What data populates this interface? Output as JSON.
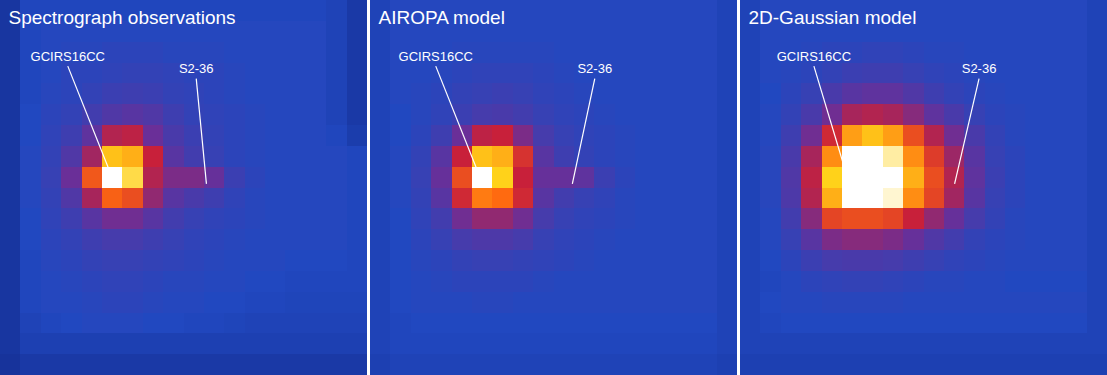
{
  "chart_data": [
    {
      "type": "heatmap",
      "title": "Spectrograph observations",
      "tick_labels": false,
      "xlim": [
        0,
        18
      ],
      "ylim": [
        0,
        18
      ],
      "zlim": [
        0,
        100
      ],
      "cells": [
        [
          14,
          24,
          24,
          24,
          24,
          24,
          24,
          24,
          24,
          24,
          24,
          24,
          24,
          24,
          24,
          24,
          22,
          16
        ],
        [
          14,
          24,
          26,
          26,
          26,
          26,
          26,
          26,
          26,
          26,
          26,
          26,
          26,
          26,
          26,
          26,
          22,
          16
        ],
        [
          14,
          24,
          26,
          27,
          27,
          28,
          28,
          28,
          27,
          27,
          27,
          26,
          26,
          26,
          26,
          26,
          22,
          16
        ],
        [
          14,
          24,
          26,
          28,
          28,
          29,
          30,
          30,
          29,
          28,
          28,
          27,
          26,
          26,
          26,
          26,
          22,
          16
        ],
        [
          14,
          24,
          27,
          28,
          30,
          32,
          33,
          32,
          30,
          29,
          28,
          27,
          26,
          26,
          26,
          26,
          22,
          16
        ],
        [
          14,
          25,
          28,
          30,
          34,
          38,
          40,
          38,
          33,
          30,
          29,
          28,
          27,
          26,
          26,
          26,
          22,
          16
        ],
        [
          14,
          25,
          29,
          33,
          42,
          58,
          60,
          45,
          36,
          32,
          30,
          28,
          27,
          26,
          26,
          26,
          24,
          18
        ],
        [
          14,
          26,
          30,
          38,
          55,
          88,
          86,
          62,
          40,
          34,
          31,
          28,
          27,
          26,
          26,
          26,
          26,
          24
        ],
        [
          14,
          26,
          31,
          45,
          74,
          100,
          92,
          58,
          48,
          48,
          44,
          32,
          28,
          26,
          26,
          26,
          26,
          24
        ],
        [
          14,
          26,
          30,
          38,
          56,
          76,
          72,
          52,
          40,
          36,
          33,
          29,
          27,
          26,
          26,
          26,
          26,
          24
        ],
        [
          14,
          25,
          29,
          33,
          40,
          46,
          46,
          40,
          34,
          31,
          29,
          28,
          27,
          26,
          26,
          26,
          26,
          24
        ],
        [
          14,
          25,
          28,
          30,
          33,
          35,
          35,
          33,
          31,
          29,
          28,
          27,
          26,
          26,
          26,
          26,
          26,
          24
        ],
        [
          14,
          24,
          27,
          28,
          30,
          31,
          31,
          30,
          29,
          28,
          27,
          26,
          26,
          26,
          25,
          25,
          25,
          24
        ],
        [
          14,
          24,
          26,
          27,
          28,
          29,
          29,
          28,
          27,
          27,
          26,
          26,
          25,
          25,
          24,
          24,
          24,
          24
        ],
        [
          14,
          24,
          26,
          26,
          27,
          28,
          28,
          27,
          26,
          26,
          25,
          25,
          24,
          24,
          23,
          23,
          23,
          23
        ],
        [
          14,
          22,
          24,
          25,
          26,
          26,
          26,
          25,
          25,
          24,
          24,
          23,
          22,
          22,
          22,
          22,
          22,
          22
        ],
        [
          14,
          20,
          20,
          20,
          20,
          20,
          20,
          20,
          20,
          20,
          20,
          20,
          20,
          20,
          20,
          20,
          20,
          20
        ],
        [
          12,
          16,
          16,
          16,
          16,
          16,
          16,
          16,
          16,
          16,
          16,
          16,
          16,
          16,
          16,
          16,
          16,
          16
        ]
      ],
      "annotations": [
        {
          "text": "GCIRS16CC",
          "x": 3.3,
          "y": 2.7,
          "point": [
            5.6,
            8.8
          ]
        },
        {
          "text": "S2-36",
          "x": 9.6,
          "y": 3.3,
          "point": [
            10.1,
            8.8
          ]
        }
      ]
    },
    {
      "type": "heatmap",
      "title": "AIROPA model",
      "tick_labels": false,
      "xlim": [
        0,
        18
      ],
      "ylim": [
        0,
        18
      ],
      "zlim": [
        0,
        100
      ],
      "cells": [
        [
          22,
          26,
          26,
          26,
          26,
          26,
          26,
          26,
          26,
          26,
          26,
          26,
          26,
          26,
          26,
          26,
          26,
          22
        ],
        [
          22,
          26,
          26,
          26,
          26,
          26,
          26,
          26,
          26,
          26,
          26,
          26,
          26,
          26,
          26,
          26,
          26,
          22
        ],
        [
          22,
          26,
          26,
          26,
          27,
          27,
          27,
          27,
          27,
          26,
          26,
          26,
          26,
          26,
          26,
          26,
          26,
          22
        ],
        [
          22,
          26,
          26,
          27,
          28,
          29,
          29,
          29,
          28,
          27,
          26,
          26,
          26,
          26,
          26,
          26,
          26,
          22
        ],
        [
          22,
          26,
          27,
          28,
          30,
          31,
          32,
          31,
          29,
          28,
          27,
          26,
          26,
          26,
          26,
          26,
          26,
          22
        ],
        [
          22,
          25,
          27,
          29,
          32,
          35,
          36,
          34,
          31,
          29,
          28,
          27,
          26,
          26,
          26,
          26,
          26,
          22
        ],
        [
          22,
          25,
          28,
          33,
          45,
          60,
          62,
          48,
          35,
          31,
          29,
          28,
          27,
          26,
          26,
          26,
          26,
          22
        ],
        [
          22,
          26,
          30,
          40,
          62,
          88,
          86,
          66,
          40,
          33,
          30,
          28,
          27,
          26,
          26,
          26,
          26,
          22
        ],
        [
          22,
          26,
          31,
          44,
          72,
          100,
          90,
          62,
          44,
          44,
          42,
          32,
          28,
          26,
          26,
          26,
          26,
          22
        ],
        [
          22,
          26,
          30,
          40,
          64,
          80,
          78,
          64,
          40,
          34,
          31,
          29,
          27,
          26,
          26,
          26,
          26,
          22
        ],
        [
          22,
          25,
          29,
          34,
          46,
          52,
          52,
          46,
          35,
          31,
          29,
          28,
          27,
          26,
          26,
          26,
          26,
          22
        ],
        [
          22,
          25,
          28,
          31,
          35,
          37,
          37,
          35,
          31,
          29,
          28,
          27,
          26,
          26,
          26,
          26,
          26,
          22
        ],
        [
          22,
          25,
          27,
          28,
          30,
          31,
          31,
          30,
          29,
          28,
          27,
          26,
          26,
          26,
          26,
          26,
          26,
          22
        ],
        [
          22,
          25,
          26,
          27,
          28,
          28,
          28,
          28,
          27,
          26,
          26,
          26,
          26,
          26,
          26,
          26,
          26,
          22
        ],
        [
          22,
          25,
          26,
          26,
          26,
          27,
          27,
          26,
          26,
          26,
          26,
          26,
          26,
          26,
          26,
          26,
          26,
          22
        ],
        [
          22,
          24,
          25,
          25,
          25,
          25,
          25,
          25,
          25,
          25,
          25,
          25,
          25,
          25,
          25,
          25,
          25,
          22
        ],
        [
          22,
          24,
          24,
          24,
          24,
          24,
          24,
          24,
          24,
          24,
          24,
          24,
          24,
          24,
          24,
          24,
          24,
          22
        ],
        [
          20,
          22,
          22,
          22,
          22,
          22,
          22,
          22,
          22,
          22,
          22,
          22,
          22,
          22,
          22,
          22,
          22,
          20
        ]
      ],
      "annotations": [
        {
          "text": "GCIRS16CC",
          "x": 3.2,
          "y": 2.7,
          "point": [
            5.5,
            8.8
          ]
        },
        {
          "text": "S2-36",
          "x": 11,
          "y": 3.3,
          "point": [
            9.9,
            8.8
          ]
        }
      ]
    },
    {
      "type": "heatmap",
      "title": "2D-Gaussian model",
      "tick_labels": false,
      "xlim": [
        0,
        18
      ],
      "ylim": [
        0,
        18
      ],
      "zlim": [
        0,
        100
      ],
      "cells": [
        [
          22,
          26,
          26,
          26,
          26,
          26,
          26,
          26,
          26,
          26,
          26,
          26,
          26,
          26,
          26,
          26,
          26,
          22
        ],
        [
          22,
          26,
          26,
          26,
          26,
          26,
          26,
          26,
          26,
          26,
          26,
          26,
          26,
          26,
          26,
          26,
          26,
          22
        ],
        [
          22,
          26,
          26,
          27,
          28,
          28,
          29,
          29,
          28,
          27,
          27,
          26,
          26,
          26,
          26,
          26,
          26,
          22
        ],
        [
          22,
          26,
          27,
          28,
          30,
          32,
          33,
          33,
          31,
          29,
          28,
          27,
          26,
          26,
          26,
          26,
          26,
          22
        ],
        [
          22,
          25,
          28,
          31,
          36,
          40,
          42,
          42,
          38,
          33,
          30,
          28,
          27,
          26,
          26,
          26,
          26,
          22
        ],
        [
          22,
          26,
          30,
          36,
          46,
          56,
          58,
          56,
          50,
          42,
          36,
          31,
          28,
          27,
          26,
          26,
          26,
          22
        ],
        [
          22,
          26,
          33,
          46,
          64,
          84,
          88,
          84,
          72,
          58,
          46,
          36,
          30,
          27,
          26,
          26,
          26,
          22
        ],
        [
          22,
          27,
          36,
          56,
          82,
          100,
          100,
          96,
          82,
          68,
          54,
          40,
          31,
          28,
          26,
          26,
          26,
          22
        ],
        [
          22,
          27,
          38,
          60,
          90,
          100,
          100,
          100,
          86,
          72,
          58,
          42,
          32,
          28,
          26,
          26,
          26,
          22
        ],
        [
          22,
          27,
          37,
          58,
          86,
          100,
          100,
          98,
          82,
          70,
          55,
          40,
          31,
          28,
          26,
          26,
          26,
          22
        ],
        [
          22,
          26,
          34,
          50,
          70,
          72,
          72,
          70,
          62,
          52,
          44,
          35,
          30,
          27,
          26,
          26,
          26,
          22
        ],
        [
          22,
          26,
          31,
          40,
          48,
          50,
          50,
          48,
          44,
          38,
          34,
          30,
          28,
          27,
          26,
          26,
          26,
          22
        ],
        [
          22,
          25,
          28,
          32,
          35,
          36,
          36,
          35,
          33,
          31,
          29,
          28,
          27,
          26,
          26,
          26,
          26,
          22
        ],
        [
          22,
          24,
          26,
          28,
          29,
          30,
          30,
          29,
          28,
          27,
          27,
          26,
          26,
          25,
          25,
          25,
          25,
          22
        ],
        [
          22,
          25,
          26,
          26,
          27,
          27,
          27,
          27,
          26,
          26,
          26,
          26,
          26,
          26,
          26,
          26,
          26,
          22
        ],
        [
          22,
          24,
          25,
          25,
          25,
          25,
          25,
          25,
          25,
          25,
          25,
          25,
          25,
          25,
          25,
          25,
          25,
          22
        ],
        [
          22,
          22,
          22,
          22,
          22,
          22,
          22,
          22,
          22,
          22,
          22,
          22,
          22,
          22,
          22,
          22,
          22,
          22
        ],
        [
          20,
          20,
          20,
          20,
          20,
          20,
          20,
          20,
          20,
          20,
          20,
          20,
          20,
          20,
          20,
          20,
          20,
          20
        ]
      ],
      "annotations": [
        {
          "text": "GCIRS16CC",
          "x": 3.6,
          "y": 2.7,
          "point": [
            5.4,
            9
          ]
        },
        {
          "text": "S2-36",
          "x": 11.7,
          "y": 3.3,
          "point": [
            10.5,
            8.8
          ]
        }
      ]
    }
  ]
}
